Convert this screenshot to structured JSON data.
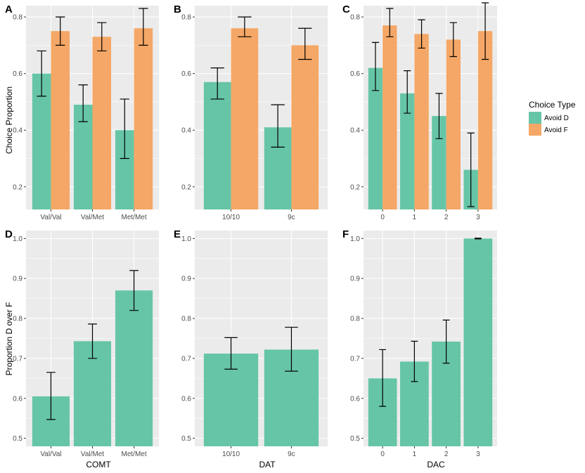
{
  "colors": {
    "avoid_d": "#66c5a7",
    "avoid_f": "#f4a766",
    "panel_bg": "#ebebeb",
    "grid": "#ffffff"
  },
  "legend": {
    "title": "Choice Type",
    "items": [
      "Avoid D",
      "Avoid F"
    ]
  },
  "chart_data": [
    {
      "type": "bar",
      "panel": "A",
      "xlabel": "",
      "ylabel": "Choice Proportion",
      "ylim": [
        0.12,
        0.84
      ],
      "yticks": [
        0.2,
        0.4,
        0.6,
        0.8
      ],
      "ytick_labels": [
        "0.2",
        "0.4",
        "0.6",
        "0.8"
      ],
      "categories": [
        "Val/Val",
        "Val/Met",
        "Met/Met"
      ],
      "series": [
        {
          "name": "Avoid D",
          "values": [
            0.6,
            0.49,
            0.4
          ],
          "err_low": [
            0.52,
            0.43,
            0.3
          ],
          "err_high": [
            0.68,
            0.56,
            0.51
          ]
        },
        {
          "name": "Avoid F",
          "values": [
            0.75,
            0.73,
            0.76
          ],
          "err_low": [
            0.7,
            0.68,
            0.7
          ],
          "err_high": [
            0.8,
            0.78,
            0.83
          ]
        }
      ]
    },
    {
      "type": "bar",
      "panel": "B",
      "xlabel": "",
      "ylabel": "",
      "ylim": [
        0.12,
        0.84
      ],
      "yticks": [
        0.2,
        0.4,
        0.6,
        0.8
      ],
      "ytick_labels": [
        "0.2",
        "0.4",
        "0.6",
        "0.8"
      ],
      "categories": [
        "10/10",
        "9c"
      ],
      "series": [
        {
          "name": "Avoid D",
          "values": [
            0.57,
            0.41
          ],
          "err_low": [
            0.51,
            0.34
          ],
          "err_high": [
            0.62,
            0.49
          ]
        },
        {
          "name": "Avoid F",
          "values": [
            0.76,
            0.7
          ],
          "err_low": [
            0.73,
            0.65
          ],
          "err_high": [
            0.8,
            0.76
          ]
        }
      ]
    },
    {
      "type": "bar",
      "panel": "C",
      "xlabel": "",
      "ylabel": "",
      "ylim": [
        0.12,
        0.84
      ],
      "yticks": [
        0.2,
        0.4,
        0.6,
        0.8
      ],
      "ytick_labels": [
        "0.2",
        "0.4",
        "0.6",
        "0.8"
      ],
      "categories": [
        "0",
        "1",
        "2",
        "3"
      ],
      "series": [
        {
          "name": "Avoid D",
          "values": [
            0.62,
            0.53,
            0.45,
            0.26
          ],
          "err_low": [
            0.54,
            0.46,
            0.37,
            0.13
          ],
          "err_high": [
            0.71,
            0.61,
            0.53,
            0.39
          ]
        },
        {
          "name": "Avoid F",
          "values": [
            0.77,
            0.74,
            0.72,
            0.75
          ],
          "err_low": [
            0.73,
            0.69,
            0.66,
            0.65
          ],
          "err_high": [
            0.83,
            0.79,
            0.78,
            0.85
          ]
        }
      ]
    },
    {
      "type": "bar",
      "panel": "D",
      "xlabel": "COMT",
      "ylabel": "Proportion D over F",
      "ylim": [
        0.48,
        1.02
      ],
      "yticks": [
        0.5,
        0.6,
        0.7,
        0.8,
        0.9,
        1.0
      ],
      "ytick_labels": [
        "0.5",
        "0.6",
        "0.7",
        "0.8",
        "0.9",
        "1.0"
      ],
      "categories": [
        "Val/Val",
        "Val/Met",
        "Met/Met"
      ],
      "series": [
        {
          "name": "Proportion D over F",
          "values": [
            0.605,
            0.743,
            0.87
          ],
          "err_low": [
            0.547,
            0.7,
            0.82
          ],
          "err_high": [
            0.665,
            0.786,
            0.92
          ]
        }
      ]
    },
    {
      "type": "bar",
      "panel": "E",
      "xlabel": "DAT",
      "ylabel": "",
      "ylim": [
        0.48,
        1.02
      ],
      "yticks": [
        0.5,
        0.6,
        0.7,
        0.8,
        0.9,
        1.0
      ],
      "ytick_labels": [
        "0.5",
        "0.6",
        "0.7",
        "0.8",
        "0.9",
        "1.0"
      ],
      "categories": [
        "10/10",
        "9c"
      ],
      "series": [
        {
          "name": "Proportion D over F",
          "values": [
            0.712,
            0.722
          ],
          "err_low": [
            0.673,
            0.668
          ],
          "err_high": [
            0.752,
            0.778
          ]
        }
      ]
    },
    {
      "type": "bar",
      "panel": "F",
      "xlabel": "DAC",
      "ylabel": "",
      "ylim": [
        0.48,
        1.02
      ],
      "yticks": [
        0.5,
        0.6,
        0.7,
        0.8,
        0.9,
        1.0
      ],
      "ytick_labels": [
        "0.5",
        "0.6",
        "0.7",
        "0.8",
        "0.9",
        "1.0"
      ],
      "categories": [
        "0",
        "1",
        "2",
        "3"
      ],
      "series": [
        {
          "name": "Proportion D over F",
          "values": [
            0.65,
            0.692,
            0.742,
            1.0
          ],
          "err_low": [
            0.58,
            0.642,
            0.688,
            0.999
          ],
          "err_high": [
            0.722,
            0.743,
            0.796,
            1.001
          ]
        }
      ]
    }
  ]
}
